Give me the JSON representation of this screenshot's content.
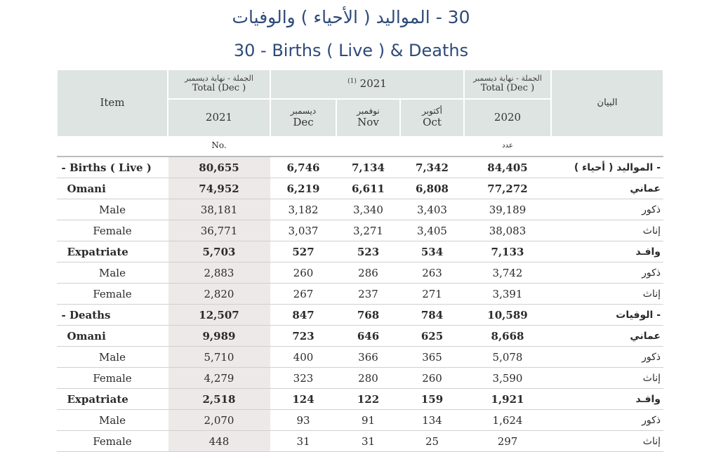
{
  "title": {
    "arabic": "30 - المواليد ( الأحياء ) والوفيات",
    "english": "30 - Births ( Live ) & Deaths"
  },
  "header": {
    "item": "Item",
    "arabic_item": "البيان",
    "total_dec_ar": "الجملة - نهاية ديسمبر",
    "total_dec_en": "Total (Dec )",
    "year_2021": "2021",
    "year_2020": "2020",
    "group_2021": "2021",
    "group_note": "(1)",
    "months": [
      {
        "ar": "ديسمبر",
        "en": "Dec"
      },
      {
        "ar": "نوفمبر",
        "en": "Nov"
      },
      {
        "ar": "أكتوبر",
        "en": "Oct"
      }
    ],
    "unit_en": "No.",
    "unit_ar": "عدد"
  },
  "rows": [
    {
      "en": "- Births ( Live )",
      "ar": "- المواليد ( أحياء )",
      "total2021": "80,655",
      "dec": "6,746",
      "nov": "7,134",
      "oct": "7,342",
      "total2020": "84,405"
    },
    {
      "en": "Omani",
      "ar": "عماني",
      "total2021": "74,952",
      "dec": "6,219",
      "nov": "6,611",
      "oct": "6,808",
      "total2020": "77,272"
    },
    {
      "en": "Male",
      "ar": "ذكور",
      "total2021": "38,181",
      "dec": "3,182",
      "nov": "3,340",
      "oct": "3,403",
      "total2020": "39,189"
    },
    {
      "en": "Female",
      "ar": "إناث",
      "total2021": "36,771",
      "dec": "3,037",
      "nov": "3,271",
      "oct": "3,405",
      "total2020": "38,083"
    },
    {
      "en": "Expatriate",
      "ar": "وافـد",
      "total2021": "5,703",
      "dec": "527",
      "nov": "523",
      "oct": "534",
      "total2020": "7,133"
    },
    {
      "en": "Male",
      "ar": "ذكور",
      "total2021": "2,883",
      "dec": "260",
      "nov": "286",
      "oct": "263",
      "total2020": "3,742"
    },
    {
      "en": "Female",
      "ar": "إناث",
      "total2021": "2,820",
      "dec": "267",
      "nov": "237",
      "oct": "271",
      "total2020": "3,391"
    },
    {
      "en": "- Deaths",
      "ar": "- الوفيات",
      "total2021": "12,507",
      "dec": "847",
      "nov": "768",
      "oct": "784",
      "total2020": "10,589"
    },
    {
      "en": "Omani",
      "ar": "عماني",
      "total2021": "9,989",
      "dec": "723",
      "nov": "646",
      "oct": "625",
      "total2020": "8,668"
    },
    {
      "en": "Male",
      "ar": "ذكور",
      "total2021": "5,710",
      "dec": "400",
      "nov": "366",
      "oct": "365",
      "total2020": "5,078"
    },
    {
      "en": "Female",
      "ar": "إناث",
      "total2021": "4,279",
      "dec": "323",
      "nov": "280",
      "oct": "260",
      "total2020": "3,590"
    },
    {
      "en": "Expatriate",
      "ar": "وافـد",
      "total2021": "2,518",
      "dec": "124",
      "nov": "122",
      "oct": "159",
      "total2020": "1,921"
    },
    {
      "en": "Male",
      "ar": "ذكور",
      "total2021": "2,070",
      "dec": "93",
      "nov": "91",
      "oct": "134",
      "total2020": "1,624"
    },
    {
      "en": "Female",
      "ar": "إناث",
      "total2021": "448",
      "dec": "31",
      "nov": "31",
      "oct": "25",
      "total2020": "297"
    }
  ]
}
